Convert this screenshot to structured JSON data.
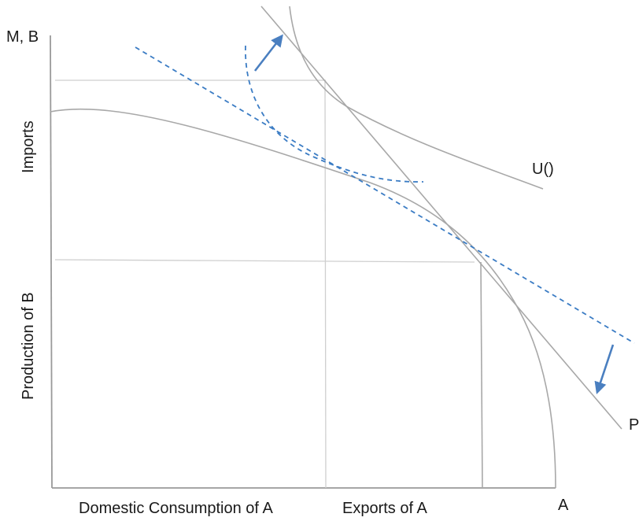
{
  "labels": {
    "y_axis_top": "M, B",
    "y_axis_imports": "Imports",
    "y_axis_production": "Production of B",
    "x_axis_domestic": "Domestic Consumption of  A",
    "x_axis_exports": "Exports of A",
    "x_axis_end": "A",
    "utility_curve": "U()",
    "price_line": "P"
  },
  "colors": {
    "curves": "#a8a8a8",
    "guides": "#cfcfcf",
    "dashed": "#3b7cc4",
    "arrows": "#4a7fc0"
  }
}
